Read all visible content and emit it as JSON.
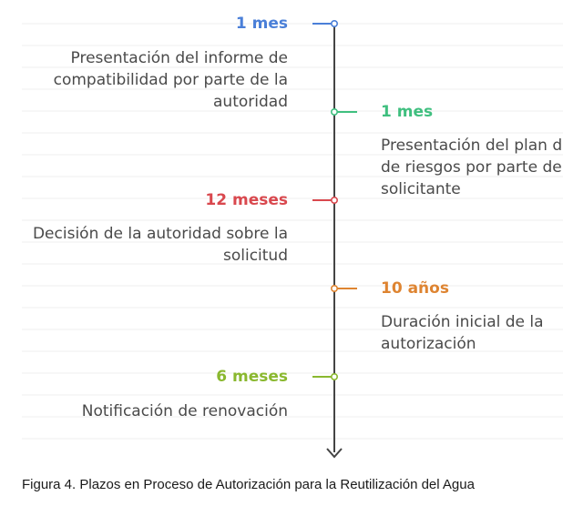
{
  "events": [
    {
      "label": "1 mes",
      "color": "#4a7fd8",
      "side": "left",
      "lines": [
        "Presentación del informe de",
        "compatibilidad por parte de la",
        "autoridad"
      ]
    },
    {
      "label": "1 mes",
      "color": "#3fbf7f",
      "side": "right",
      "lines": [
        "Presentación del plan de",
        "de riesgos por parte de",
        "solicitante"
      ]
    },
    {
      "label": "12 meses",
      "color": "#d9484e",
      "side": "left",
      "lines": [
        "Decisión de la autoridad sobre la",
        "solicitud"
      ]
    },
    {
      "label": "10 años",
      "color": "#de8431",
      "side": "right",
      "lines": [
        "Duración inicial de la",
        "autorización"
      ]
    },
    {
      "label": "6 meses",
      "color": "#8ab82f",
      "side": "left",
      "lines": [
        "Notificación de renovación"
      ]
    }
  ],
  "caption": "Figura 4. Plazos en Proceso de Autorización para la Reutilización del Agua",
  "axis_color": "#444444",
  "grid_color": "#efefef"
}
